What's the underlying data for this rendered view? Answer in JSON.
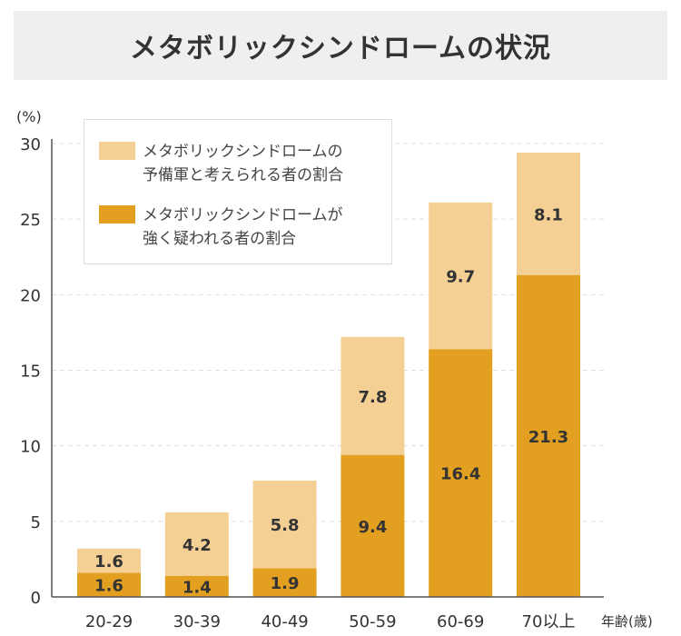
{
  "chart_data": {
    "type": "bar",
    "stacked": true,
    "title": "メタボリックシンドロームの状況",
    "ylabel": "(%)",
    "xlabel": "年齢(歳)",
    "ylim": [
      0,
      30
    ],
    "yticks": [
      0,
      5,
      10,
      15,
      20,
      25,
      30
    ],
    "grid": true,
    "categories": [
      "20-29",
      "30-39",
      "40-49",
      "50-59",
      "60-69",
      "70以上"
    ],
    "series": [
      {
        "name": "メタボリックシンドロームが強く疑われる者の割合",
        "name_lines": [
          "メタボリックシンドロームが",
          "強く疑われる者の割合"
        ],
        "color": "#e3a020",
        "values": [
          1.6,
          1.4,
          1.9,
          9.4,
          16.4,
          21.3
        ]
      },
      {
        "name": "メタボリックシンドロームの予備軍と考えられる者の割合",
        "name_lines": [
          "メタボリックシンドロームの",
          "予備軍と考えられる者の割合"
        ],
        "color": "#f4d094",
        "values": [
          1.6,
          4.2,
          5.8,
          7.8,
          9.7,
          8.1
        ]
      }
    ],
    "legend_position": "top-left"
  }
}
